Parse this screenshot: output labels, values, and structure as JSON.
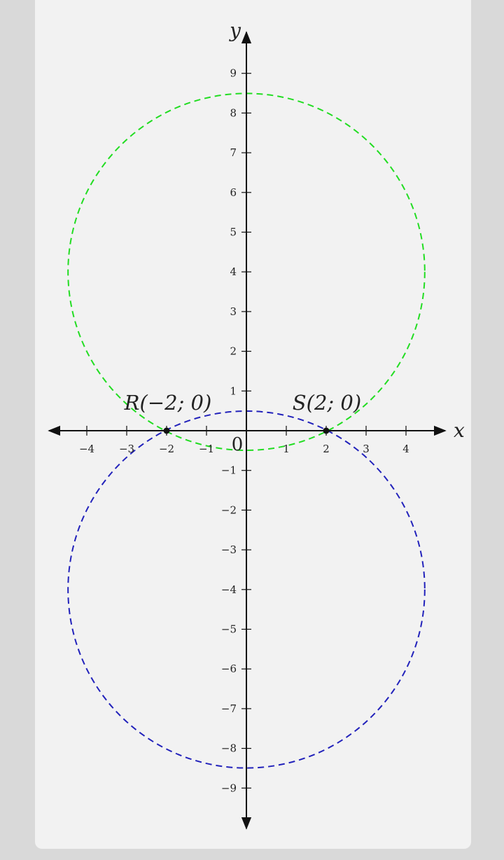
{
  "chart_data": {
    "type": "diagram",
    "axes": {
      "x_label": "x",
      "y_label": "y",
      "origin_label": "0",
      "x_ticks": [
        -4,
        -3,
        -2,
        -1,
        1,
        2,
        3,
        4
      ],
      "y_ticks": [
        -9,
        -8,
        -7,
        -6,
        -5,
        -4,
        -3,
        -2,
        -1,
        1,
        2,
        3,
        4,
        5,
        6,
        7,
        8,
        9
      ],
      "x_range": [
        -5,
        5
      ],
      "y_range": [
        -10,
        10
      ],
      "grid": false
    },
    "points": [
      {
        "label": "R(−2; 0)",
        "x": -2,
        "y": 0
      },
      {
        "label": "S(2; 0)",
        "x": 2,
        "y": 0
      }
    ],
    "circles": [
      {
        "center": [
          0,
          4
        ],
        "radius": 4.47,
        "color": "#22dd22",
        "style": "dashed"
      },
      {
        "center": [
          0,
          -4
        ],
        "radius": 4.47,
        "color": "#2222bb",
        "style": "dashed"
      }
    ]
  }
}
